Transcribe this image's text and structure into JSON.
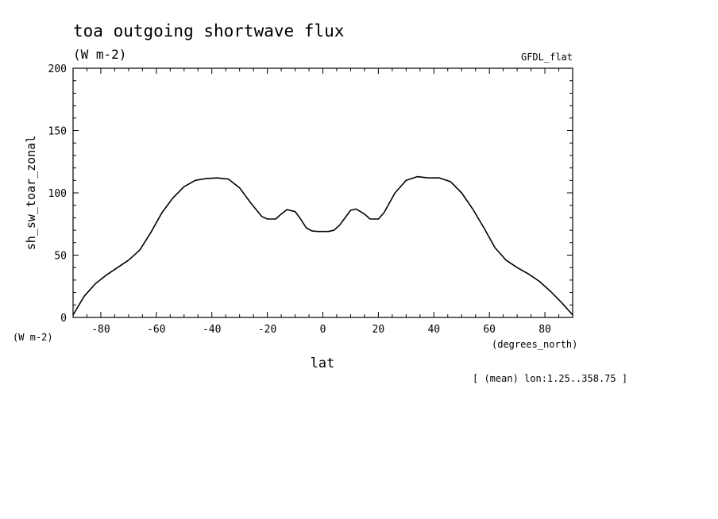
{
  "chart_data": {
    "type": "line",
    "title": "toa outgoing shortwave flux",
    "subtitle": "(W m-2)",
    "model_label": "GFDL_flat",
    "ylabel": "sh_sw_toar_zonal",
    "yunit_label": "(W m-2)",
    "xlabel": "lat",
    "xunit_label": "(degrees_north)",
    "footnote": "[ (mean) lon:1.25..358.75 ]",
    "xlim": [
      -90,
      90
    ],
    "ylim": [
      0,
      200
    ],
    "xticks": [
      -80,
      -60,
      -40,
      -20,
      0,
      20,
      40,
      60,
      80
    ],
    "xtick_labels": [
      "-80",
      "-60",
      "-40",
      "-20",
      "0",
      "20",
      "40",
      "60",
      "80"
    ],
    "yticks": [
      0,
      50,
      100,
      150,
      200
    ],
    "ytick_labels": [
      "0",
      "50",
      "100",
      "150",
      "200"
    ],
    "grid": false,
    "line_color": "#000000",
    "series": [
      {
        "x": [
          -90,
          -86,
          -82,
          -78,
          -74,
          -70,
          -66,
          -62,
          -58,
          -54,
          -50,
          -46,
          -42,
          -38,
          -34,
          -30,
          -26,
          -22,
          -20,
          -17,
          -15,
          -13,
          -10,
          -8,
          -6,
          -4,
          -2,
          0,
          2,
          4,
          6,
          8,
          10,
          12,
          15,
          17,
          20,
          22,
          26,
          30,
          34,
          38,
          42,
          46,
          50,
          54,
          58,
          62,
          66,
          70,
          74,
          78,
          82,
          86,
          90
        ],
        "y": [
          2,
          17,
          27,
          34,
          40,
          46,
          54,
          68,
          84,
          96,
          105,
          110,
          111.5,
          112,
          111,
          104,
          92,
          81,
          79,
          79,
          83,
          86.5,
          85,
          79,
          72,
          69.5,
          69,
          69,
          69,
          70,
          74,
          80,
          86,
          87,
          83,
          79,
          79,
          84,
          100,
          110,
          113,
          112,
          112,
          109,
          100,
          87,
          72,
          56,
          46,
          40,
          35,
          29,
          21,
          12,
          2
        ]
      }
    ]
  }
}
